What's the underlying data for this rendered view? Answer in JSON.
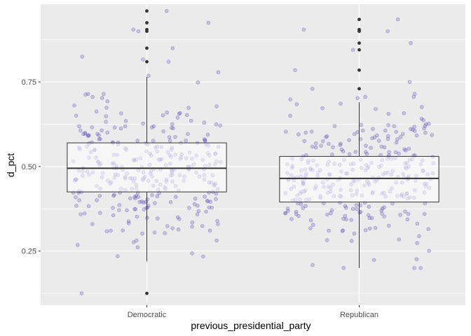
{
  "chart_data": {
    "type": "box-jitter",
    "xlabel": "previous_presidential_party",
    "ylabel": "d_pct",
    "ylim": [
      0.09,
      0.98
    ],
    "y_ticks": [
      0.25,
      0.5,
      0.75
    ],
    "y_tick_labels": [
      "0.25",
      "0.50",
      "0.75"
    ],
    "categories": [
      "Democratic",
      "Republican"
    ],
    "grid": true,
    "panel_background": "#ebebeb",
    "jitter_color": "#5a4fb8",
    "box_color": "#333333",
    "groups": [
      {
        "category": "Democratic",
        "box": {
          "lower_whisker": 0.22,
          "q1": 0.425,
          "median": 0.495,
          "q3": 0.57,
          "upper_whisker": 0.765
        },
        "outliers": [
          0.125,
          0.81,
          0.85,
          0.9,
          0.905,
          0.925,
          0.96
        ],
        "n_points": 320
      },
      {
        "category": "Republican",
        "box": {
          "lower_whisker": 0.2,
          "q1": 0.395,
          "median": 0.465,
          "q3": 0.53,
          "upper_whisker": 0.69
        },
        "outliers": [
          0.73,
          0.785,
          0.845,
          0.865,
          0.9,
          0.905,
          0.935
        ],
        "n_points": 320
      }
    ]
  }
}
